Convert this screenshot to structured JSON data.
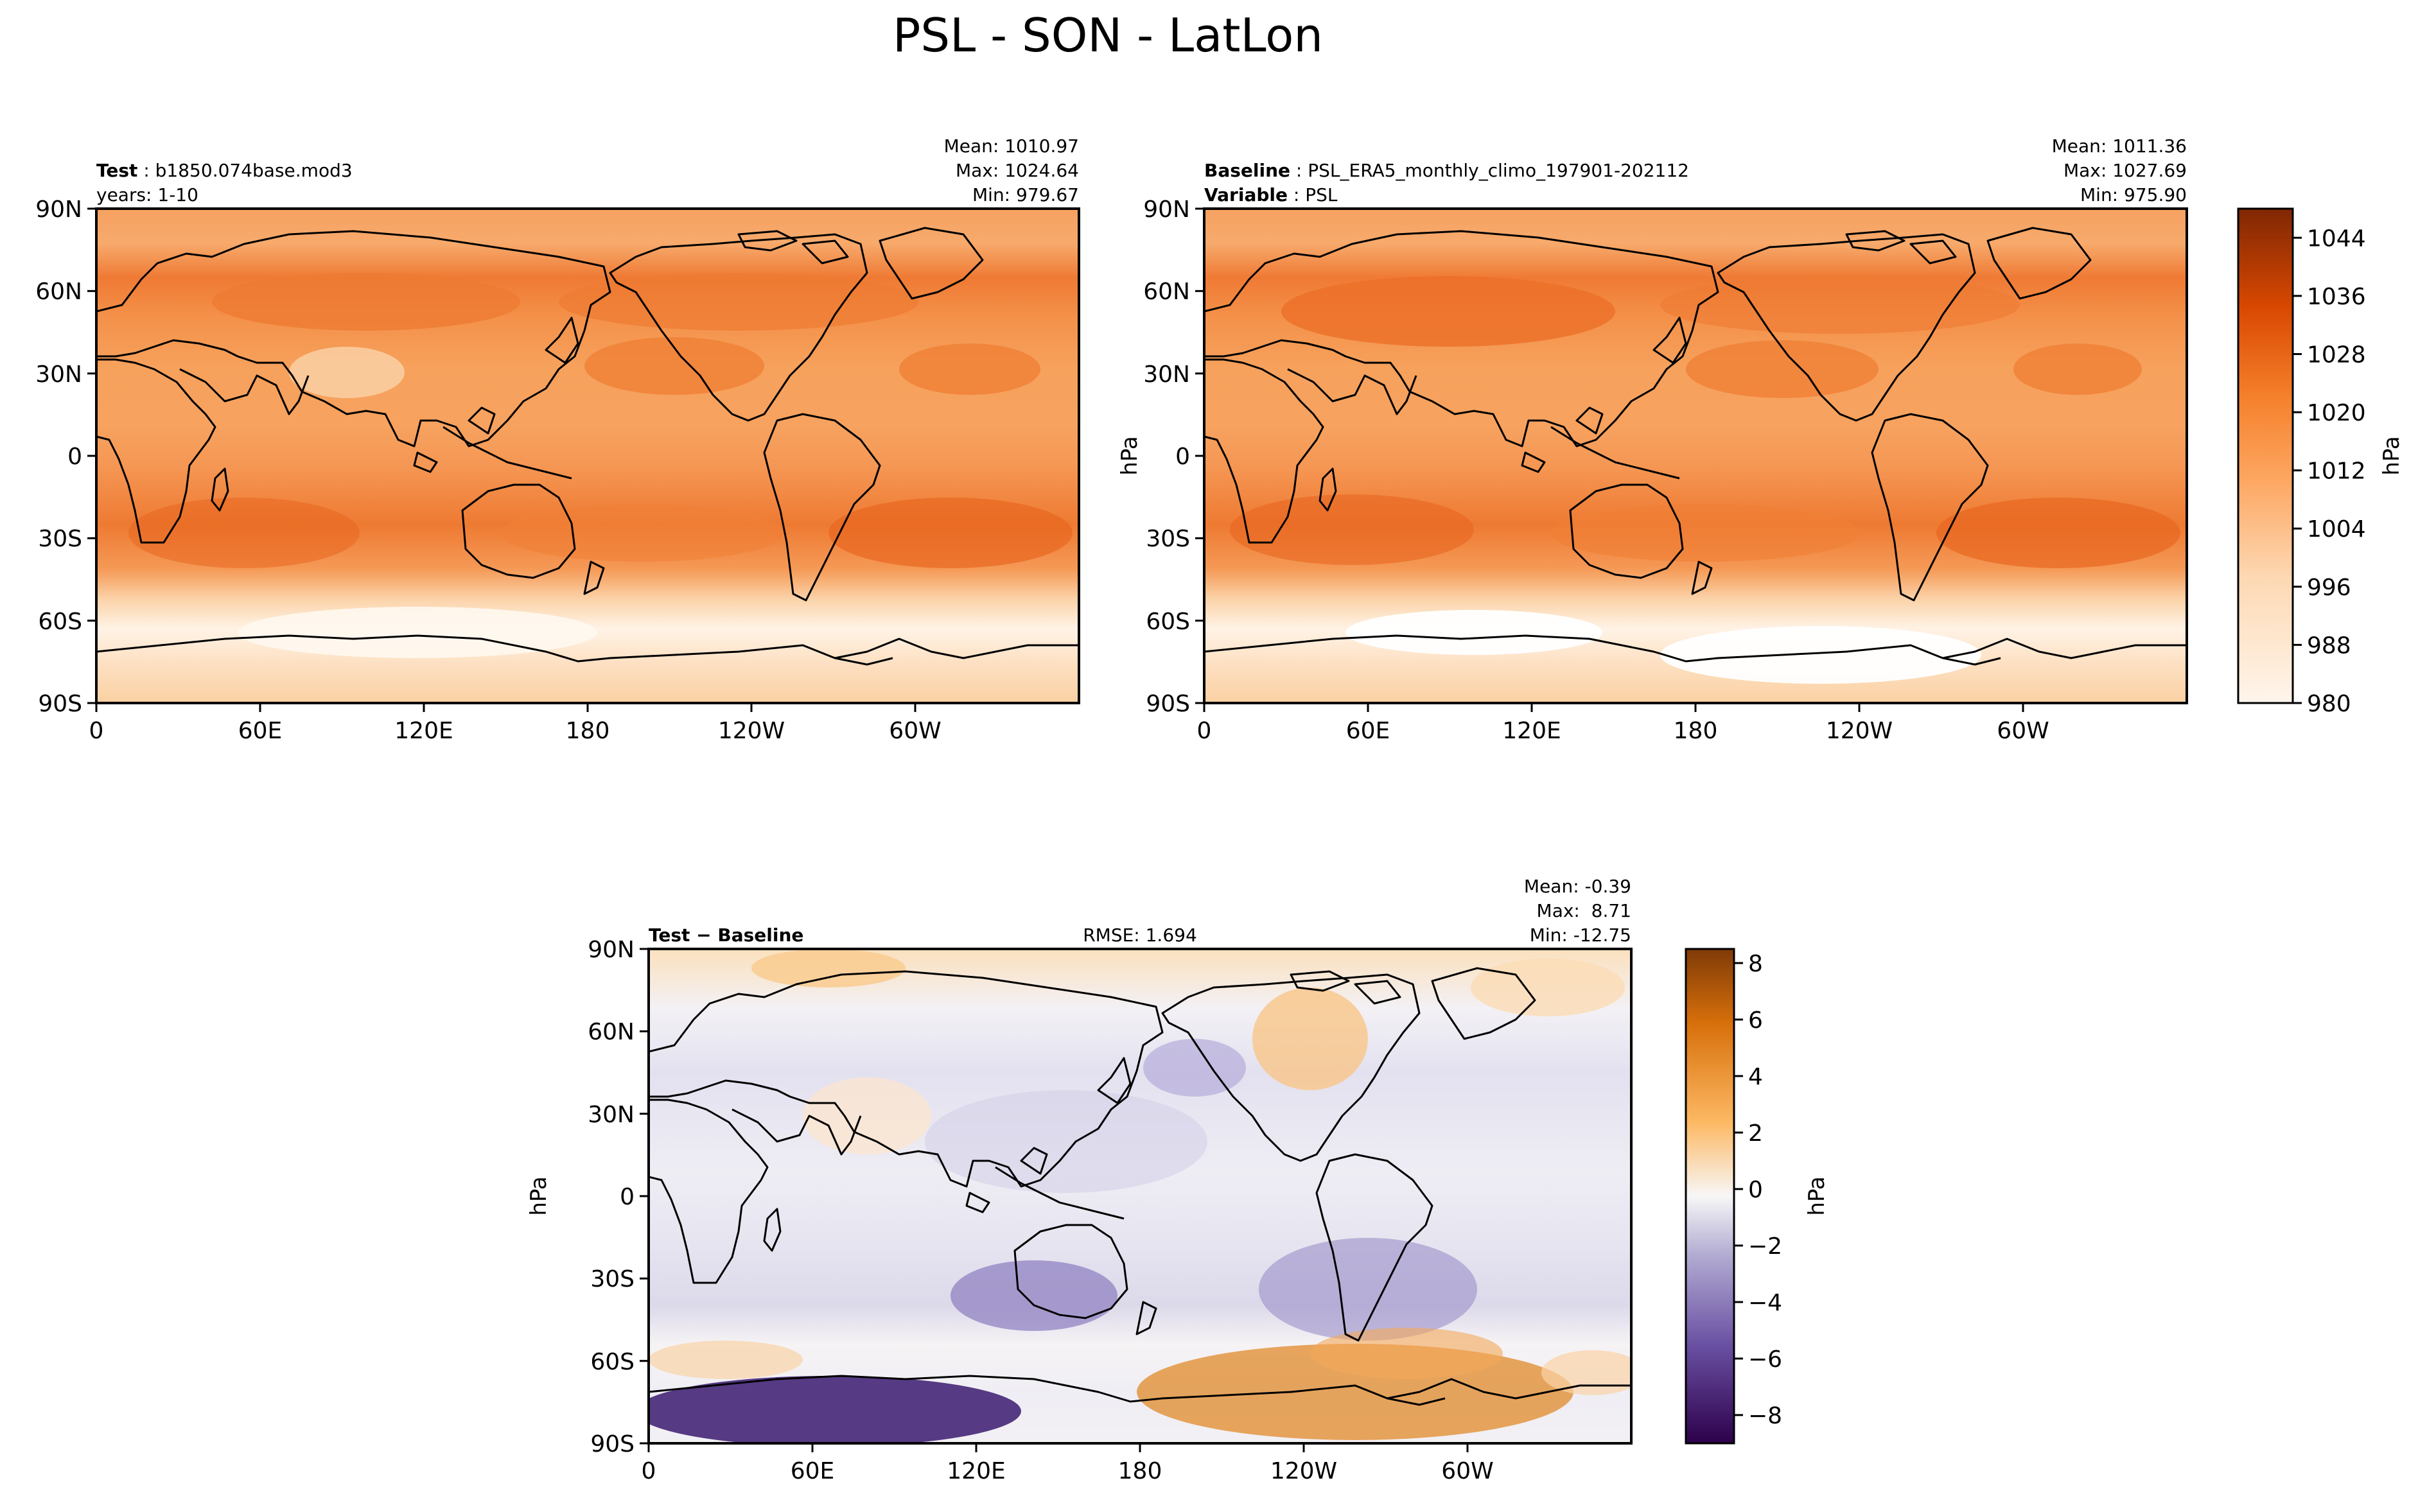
{
  "figure": {
    "title": "PSL - SON - LatLon"
  },
  "panels": [
    {
      "id": "test",
      "left_label_bold": "Test",
      "left_label_value": "b1850.074base.mod3",
      "left_label_line2": "years: 1-10",
      "stats": [
        "Mean: 1010.97",
        "Max: 1024.64",
        "Min: 979.67"
      ],
      "ylabel": "",
      "colormap": "oranges",
      "range": [
        980,
        1048
      ],
      "stats_values": {
        "mean": 1010.97,
        "max": 1024.64,
        "min": 979.67
      }
    },
    {
      "id": "baseline",
      "left_label_bold": "Baseline",
      "left_label_value": "PSL_ERA5_monthly_climo_197901-202112",
      "left_label_bold2": "Variable",
      "left_label_value2": "PSL",
      "stats": [
        "Mean: 1011.36",
        "Max: 1027.69",
        "Min: 975.90"
      ],
      "ylabel": "hPa",
      "colormap": "oranges",
      "range": [
        980,
        1048
      ],
      "stats_values": {
        "mean": 1011.36,
        "max": 1027.69,
        "min": 975.9
      }
    },
    {
      "id": "difference",
      "left_label_bold": "Test − Baseline",
      "center_label": "RMSE: 1.694",
      "stats": [
        "Mean: -0.39",
        "Max:  8.71",
        "Min: -12.75"
      ],
      "ylabel": "hPa",
      "colormap": "purple-orange diverging",
      "range": [
        -9,
        8.5
      ],
      "stats_values": {
        "mean": -0.39,
        "max": 8.71,
        "min": -12.75,
        "rmse": 1.694
      }
    }
  ],
  "axes": {
    "lat_ticks": [
      "90N",
      "60N",
      "30N",
      "0",
      "30S",
      "60S",
      "90S"
    ],
    "lon_ticks": [
      "0",
      "60E",
      "120E",
      "180",
      "120W",
      "60W"
    ]
  },
  "colorbars": [
    {
      "id": "psl",
      "label": "hPa",
      "ticks": [
        "1044",
        "1036",
        "1028",
        "1020",
        "1012",
        "1004",
        "996",
        "988",
        "980"
      ],
      "tick_values": [
        1044,
        1036,
        1028,
        1020,
        1012,
        1004,
        996,
        988,
        980
      ],
      "range": [
        980,
        1048
      ]
    },
    {
      "id": "diff",
      "label": "hPa",
      "ticks": [
        "8",
        "6",
        "4",
        "2",
        "0",
        "−2",
        "−4",
        "−6",
        "−8"
      ],
      "tick_values": [
        8,
        6,
        4,
        2,
        0,
        -2,
        -4,
        -6,
        -8
      ],
      "range": [
        -9,
        8.5
      ]
    }
  ],
  "colors": {
    "psl_low": "#fff5eb",
    "psl_mid": "#f88d42",
    "psl_high": "#7f2704",
    "diff_neg": "#2d004b",
    "diff_zero": "#f7f7f7",
    "diff_pos": "#7f3b08",
    "coastline": "#000000"
  }
}
